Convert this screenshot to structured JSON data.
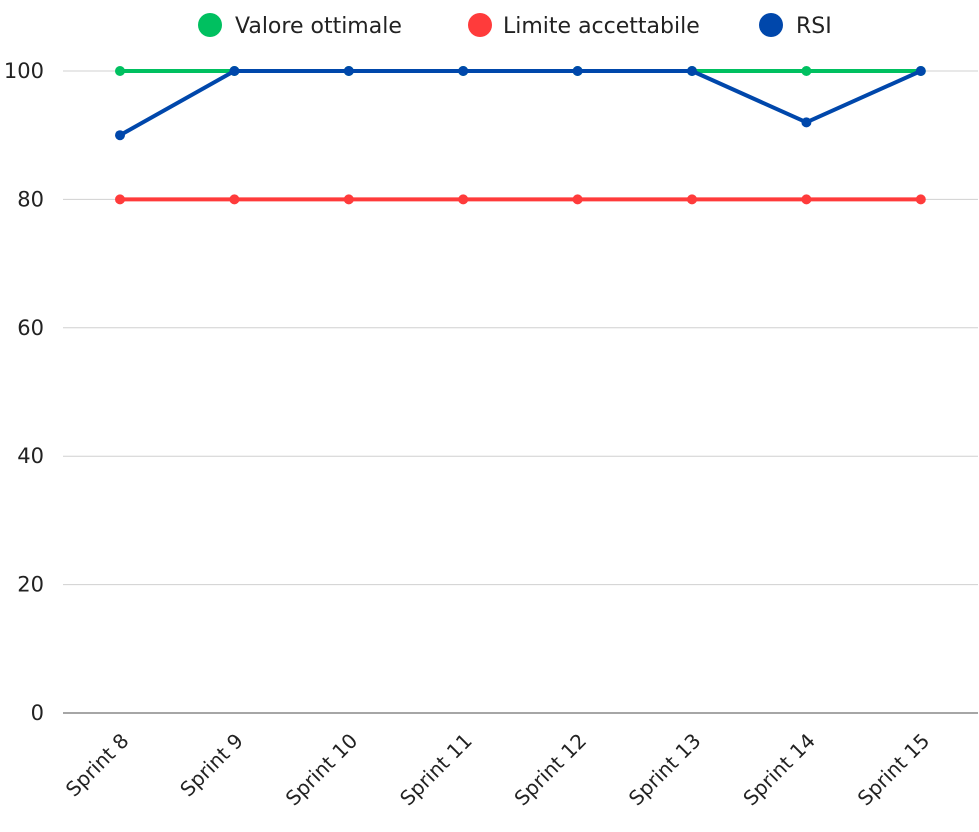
{
  "chart_data": {
    "type": "line",
    "categories": [
      "Sprint 8",
      "Sprint 9",
      "Sprint 10",
      "Sprint 11",
      "Sprint 12",
      "Sprint 13",
      "Sprint 14",
      "Sprint 15"
    ],
    "series": [
      {
        "name": "Valore ottimale",
        "color": "#00c060",
        "values": [
          100,
          100,
          100,
          100,
          100,
          100,
          100,
          100
        ]
      },
      {
        "name": "Limite accettabile",
        "color": "#ff3b3b",
        "values": [
          80,
          80,
          80,
          80,
          80,
          80,
          80,
          80
        ]
      },
      {
        "name": "RSI",
        "color": "#0047ab",
        "values": [
          90,
          100,
          100,
          100,
          100,
          100,
          92,
          100
        ]
      }
    ],
    "yticks": [
      0,
      20,
      40,
      60,
      80,
      100
    ],
    "ylim": [
      0,
      100
    ],
    "grid": true,
    "legend_position": "top-center",
    "axis_color": "#888888",
    "grid_color": "#d0d0d0"
  }
}
